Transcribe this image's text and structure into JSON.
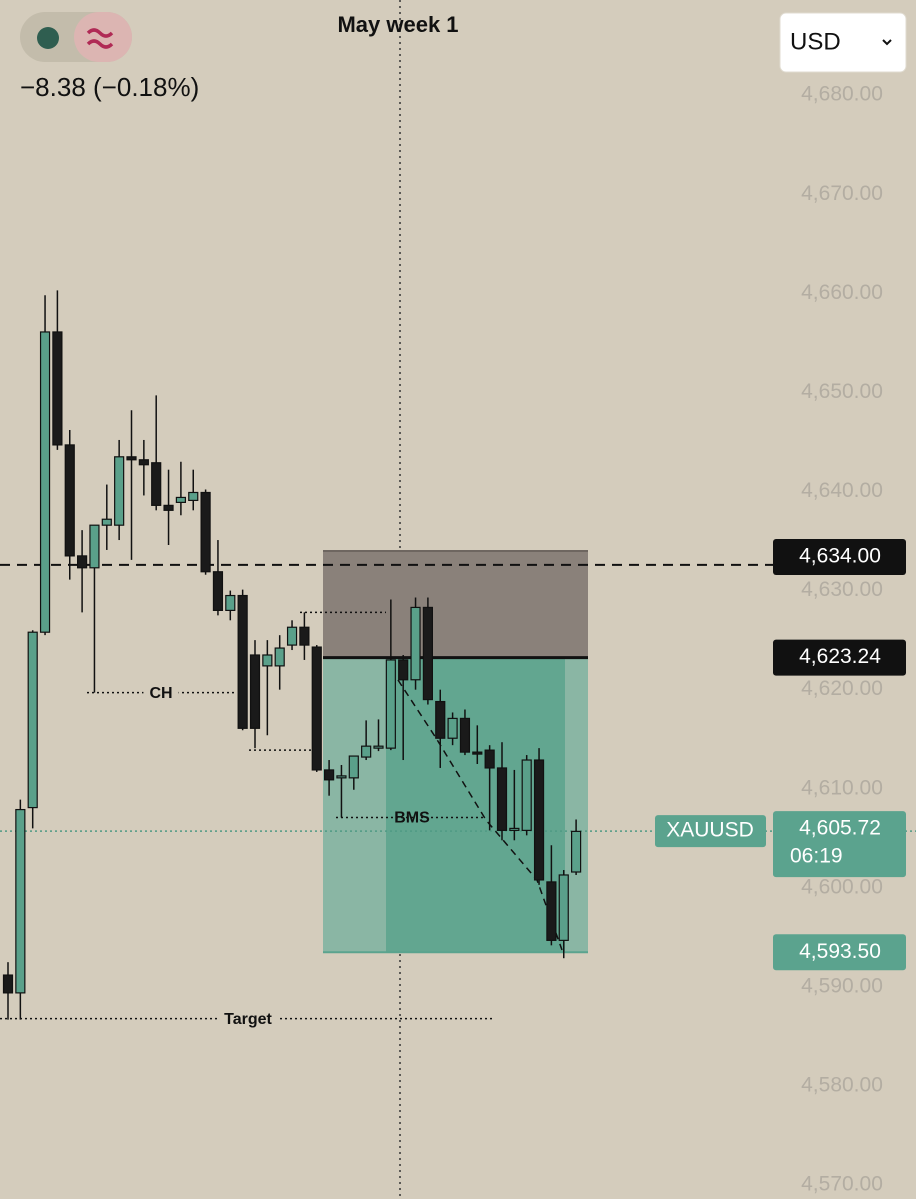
{
  "chart_data": {
    "type": "candlestick",
    "title": "May week 1",
    "change": "−8.38 (−0.18%)",
    "currency": "USD",
    "symbol": "XAUUSD",
    "ylim": [
      4568.6,
      4689.6
    ],
    "yticks": [
      {
        "value": 4680,
        "label": "4,680.00"
      },
      {
        "value": 4670,
        "label": "4,670.00"
      },
      {
        "value": 4660,
        "label": "4,660.00"
      },
      {
        "value": 4650,
        "label": "4,650.00"
      },
      {
        "value": 4640,
        "label": "4,640.00"
      },
      {
        "value": 4630,
        "label": "4,630.00"
      },
      {
        "value": 4620,
        "label": "4,620.00"
      },
      {
        "value": 4610,
        "label": "4,610.00"
      },
      {
        "value": 4600,
        "label": "4,600.00"
      },
      {
        "value": 4590,
        "label": "4,590.00"
      },
      {
        "value": 4580,
        "label": "4,580.00"
      },
      {
        "value": 4570,
        "label": "4,570.00"
      }
    ],
    "up_color": "#5aa08a",
    "down_color": "#1a1a1a",
    "open": [
      4591.2,
      4589.4,
      4608.1,
      4625.8,
      4656.1,
      4644.7,
      4633.5,
      4632.3,
      4636.6,
      4636.6,
      4643.5,
      4643.2,
      4642.9,
      4638.6,
      4638.9,
      4639.1,
      4639.9,
      4631.9,
      4628.0,
      4629.5,
      4623.5,
      4622.4,
      4622.4,
      4624.5,
      4626.3,
      4624.3,
      4611.9,
      4611.1,
      4611.1,
      4613.2,
      4614.1,
      4614.1,
      4623.0,
      4621.0,
      4628.3,
      4618.8,
      4615.1,
      4617.1,
      4613.7,
      4613.9,
      4612.1,
      4605.8,
      4605.8,
      4612.9,
      4600.6,
      4594.7,
      4601.6
    ],
    "high": [
      4592.5,
      4608.9,
      4626.0,
      4659.8,
      4660.3,
      4646.2,
      4636.1,
      4636.6,
      4640.7,
      4645.2,
      4648.2,
      4645.2,
      4649.7,
      4642.2,
      4643.0,
      4642.2,
      4640.2,
      4635.1,
      4630.0,
      4630.1,
      4625.0,
      4625.0,
      4625.5,
      4627.0,
      4627.8,
      4624.5,
      4612.9,
      4612.4,
      4613.3,
      4616.9,
      4617.0,
      4629.1,
      4623.5,
      4629.3,
      4629.3,
      4620.0,
      4617.7,
      4618.0,
      4616.4,
      4614.4,
      4614.7,
      4611.9,
      4613.4,
      4614.1,
      4604.3,
      4601.8,
      4606.9
    ],
    "low": [
      4586.7,
      4586.7,
      4606.0,
      4625.5,
      4644.2,
      4631.1,
      4627.8,
      4619.7,
      4634.1,
      4635.1,
      4633.1,
      4639.6,
      4638.1,
      4634.6,
      4637.6,
      4638.1,
      4631.6,
      4627.5,
      4627.0,
      4615.9,
      4614.1,
      4615.4,
      4620.0,
      4624.0,
      4623.0,
      4611.7,
      4609.3,
      4607.1,
      4609.9,
      4612.9,
      4613.8,
      4613.9,
      4612.9,
      4620.0,
      4618.5,
      4612.1,
      4614.4,
      4613.4,
      4612.5,
      4605.8,
      4604.8,
      4604.8,
      4605.3,
      4600.3,
      4594.2,
      4592.9,
      4601.3
    ],
    "close": [
      4589.4,
      4607.9,
      4625.8,
      4656.1,
      4644.7,
      4633.5,
      4632.3,
      4636.6,
      4637.2,
      4643.5,
      4643.2,
      4642.7,
      4638.6,
      4638.1,
      4639.4,
      4639.9,
      4631.9,
      4628.0,
      4629.5,
      4616.1,
      4616.1,
      4623.5,
      4624.2,
      4626.3,
      4624.5,
      4611.9,
      4610.9,
      4611.3,
      4613.3,
      4614.3,
      4614.3,
      4623.0,
      4621.0,
      4628.3,
      4619.0,
      4615.1,
      4617.1,
      4613.7,
      4613.5,
      4612.1,
      4605.8,
      4606.0,
      4612.9,
      4600.8,
      4594.7,
      4601.3,
      4605.7
    ],
    "price_labels": [
      {
        "value": 4634,
        "label": "4,634.00",
        "color": "#111111"
      },
      {
        "value": 4623.24,
        "label": "4,623.24",
        "color": "#111111"
      },
      {
        "value": 4605.72,
        "label": "4,605.72",
        "color": "#5ba38e",
        "countdown": "06:19"
      },
      {
        "value": 4593.5,
        "label": "4,593.50",
        "color": "#5ba38e"
      }
    ],
    "dashed_level": 4632.6,
    "dotted_levels": [
      4627.8,
      4613.9
    ],
    "annotations": [
      {
        "text": "CH",
        "value": 4619.7
      },
      {
        "text": "BMS",
        "value": 4607.1
      },
      {
        "text": "Target",
        "value": 4586.8
      }
    ]
  }
}
